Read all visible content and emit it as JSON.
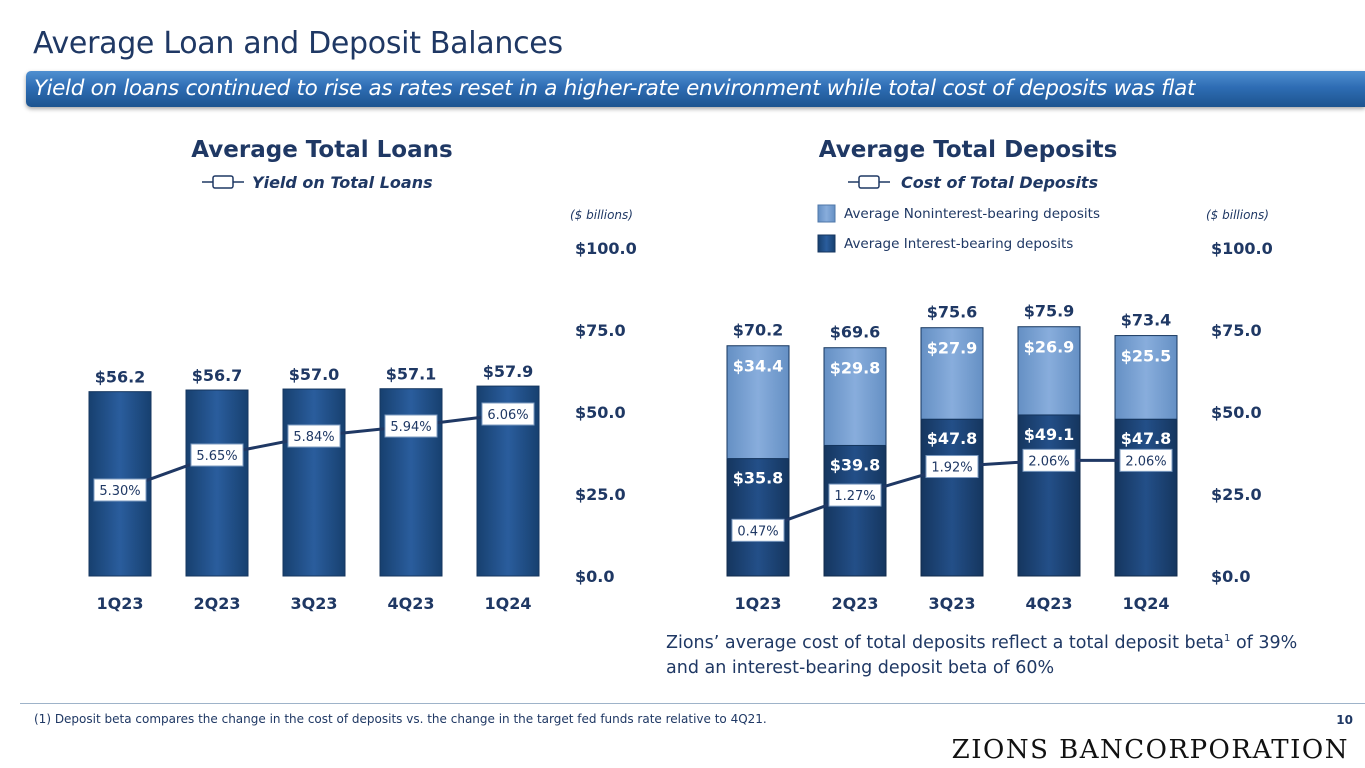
{
  "title": "Average Loan and Deposit Balances",
  "subtitle": "Yield on loans continued to rise as rates reset in a higher-rate environment while total cost of deposits was flat",
  "footnote": "(1) Deposit beta compares the change in the cost of deposits vs. the change in the target fed funds rate relative to 4Q21.",
  "page_number": "10",
  "logo_text": "Zions Bancorporation",
  "note": {
    "part1": "Zions’ average cost of total deposits reflect a total deposit beta",
    "sup": "1",
    "part2": " of 39% and an interest-bearing deposit beta of 60%"
  },
  "colors": {
    "bar_dark": "#1f4e8a",
    "bar_light": "#7ea6d8",
    "text_navy": "#1f3864",
    "banner": "#2e6db4"
  },
  "chart_data": [
    {
      "type": "bar",
      "title": "Average Total Loans",
      "line_legend": "Yield on Total Loans",
      "unit_label": "($ billions)",
      "categories": [
        "1Q23",
        "2Q23",
        "3Q23",
        "4Q23",
        "1Q24"
      ],
      "values": [
        56.2,
        56.7,
        57.0,
        57.1,
        57.9
      ],
      "value_labels": [
        "$56.2",
        "$56.7",
        "$57.0",
        "$57.1",
        "$57.9"
      ],
      "line": {
        "name": "Yield on Total Loans",
        "values": [
          5.3,
          5.65,
          5.84,
          5.94,
          6.06
        ],
        "labels": [
          "5.30%",
          "5.65%",
          "5.84%",
          "5.94%",
          "6.06%"
        ]
      },
      "y_axis_labels": [
        "$100.0",
        "$75.0",
        "$50.0",
        "$25.0",
        "$0.0"
      ],
      "ylim": [
        0,
        100
      ],
      "grid": false
    },
    {
      "type": "bar",
      "stacked": true,
      "title": "Average Total Deposits",
      "line_legend": "Cost of Total Deposits",
      "unit_label": "($ billions)",
      "categories": [
        "1Q23",
        "2Q23",
        "3Q23",
        "4Q23",
        "1Q24"
      ],
      "series": [
        {
          "name": "Average Interest-bearing deposits",
          "values": [
            35.8,
            39.8,
            47.8,
            49.1,
            47.8
          ],
          "labels": [
            "$35.8",
            "$39.8",
            "$47.8",
            "$49.1",
            "$47.8"
          ]
        },
        {
          "name": "Average Noninterest-bearing deposits",
          "values": [
            34.4,
            29.8,
            27.9,
            26.9,
            25.5
          ],
          "labels": [
            "$34.4",
            "$29.8",
            "$27.9",
            "$26.9",
            "$25.5"
          ]
        }
      ],
      "totals": [
        70.2,
        69.6,
        75.6,
        75.9,
        73.4
      ],
      "total_labels": [
        "$70.2",
        "$69.6",
        "$75.6",
        "$75.9",
        "$73.4"
      ],
      "line": {
        "name": "Cost of Total Deposits",
        "values": [
          0.47,
          1.27,
          1.92,
          2.06,
          2.06
        ],
        "labels": [
          "0.47%",
          "1.27%",
          "1.92%",
          "2.06%",
          "2.06%"
        ]
      },
      "y_axis_labels": [
        "$100.0",
        "$75.0",
        "$50.0",
        "$25.0",
        "$0.0"
      ],
      "ylim": [
        0,
        100
      ],
      "grid": false
    }
  ]
}
